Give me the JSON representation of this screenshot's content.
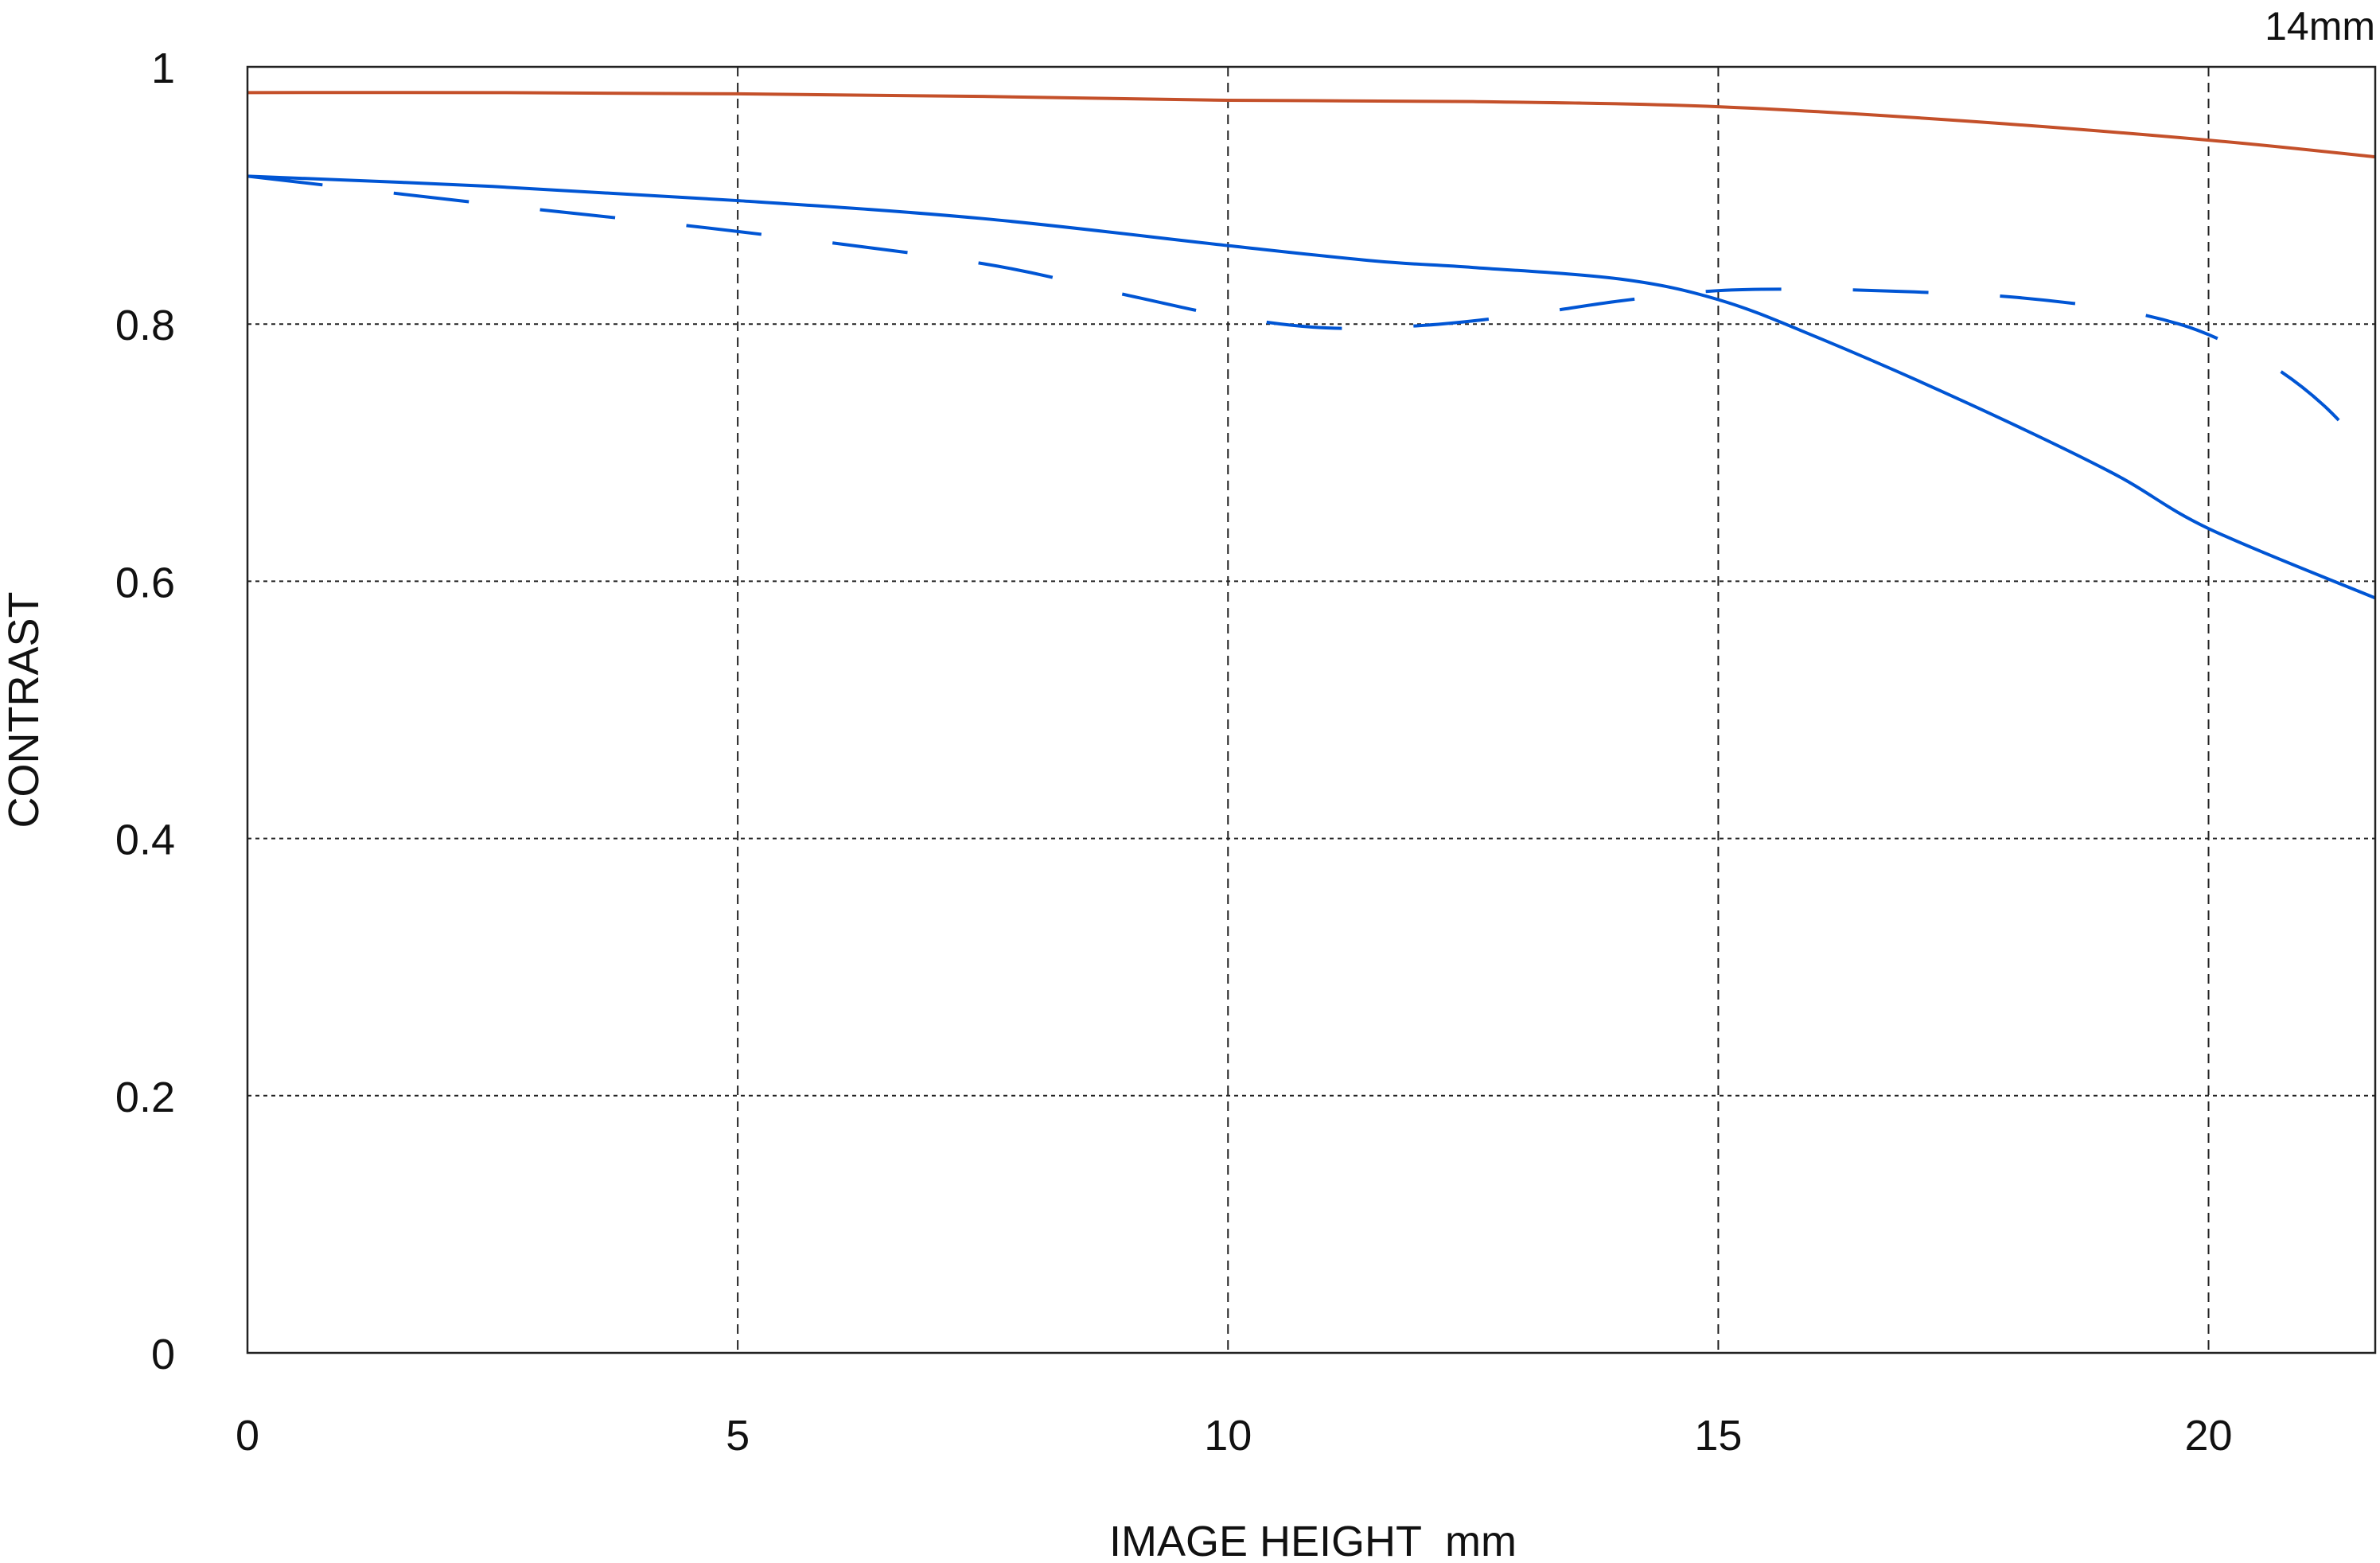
{
  "chart_data": {
    "type": "line",
    "title": "14mm",
    "xlabel": "IMAGE HEIGHT  mm",
    "ylabel": "CONTRAST",
    "xlim": [
      0,
      21.7
    ],
    "ylim": [
      0,
      1
    ],
    "x_ticks": [
      "0",
      "5",
      "10",
      "15",
      "20"
    ],
    "y_ticks": [
      "0",
      "0.2",
      "0.4",
      "0.6",
      "0.8",
      "1"
    ],
    "grid": true,
    "series": [
      {
        "color": "#c4502a",
        "style": "solid",
        "x": [
          0,
          2.5,
          5,
          7.5,
          10,
          12.5,
          15,
          17.5,
          20,
          21.7
        ],
        "y": [
          0.98,
          0.98,
          0.979,
          0.977,
          0.974,
          0.973,
          0.969,
          0.958,
          0.943,
          0.93
        ]
      },
      {
        "color": "#0055d4",
        "style": "solid",
        "x": [
          0,
          2.5,
          5,
          7.5,
          10,
          11.5,
          12.5,
          14,
          15,
          16,
          17.5,
          19,
          20,
          21.7
        ],
        "y": [
          0.915,
          0.907,
          0.896,
          0.882,
          0.861,
          0.849,
          0.844,
          0.835,
          0.819,
          0.79,
          0.74,
          0.685,
          0.641,
          0.587
        ]
      },
      {
        "color": "#0055d4",
        "style": "dashed",
        "x": [
          0,
          2.5,
          5,
          7.5,
          9,
          10,
          11,
          12,
          13,
          14,
          15,
          16,
          17,
          18,
          19,
          19.7,
          20.2,
          20.7,
          21.2,
          21.7
        ],
        "y": [
          0.915,
          0.893,
          0.872,
          0.847,
          0.822,
          0.806,
          0.797,
          0.799,
          0.807,
          0.818,
          0.826,
          0.827,
          0.825,
          0.821,
          0.812,
          0.8,
          0.785,
          0.765,
          0.735,
          0.694
        ]
      }
    ]
  }
}
